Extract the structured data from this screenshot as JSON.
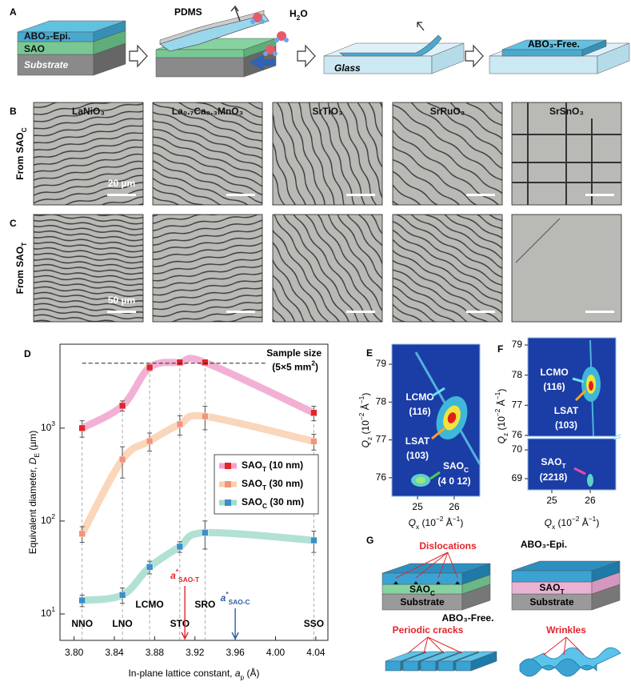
{
  "panel_letters": [
    "A",
    "B",
    "C",
    "D",
    "E",
    "F",
    "G"
  ],
  "panel_a": {
    "epi": "ABO₃-Epi.",
    "sao": "SAO",
    "substrate": "Substrate",
    "pdms": "PDMS",
    "water": [
      "H",
      {
        "sub": "2"
      },
      "O"
    ],
    "glass": "Glass",
    "free": "ABO₃-Free."
  },
  "panel_bc": {
    "materials": [
      "LaNiO₃",
      "La₀.₇Ca₀.₃MnO₃",
      "SrTiO₃",
      "SrRuO₃",
      "SrSnO₃"
    ],
    "rows": [
      [
        "From SAO",
        {
          "sub": "C"
        }
      ],
      [
        "From SAO",
        {
          "sub": "T"
        }
      ]
    ],
    "scale_bars": [
      "20 µm",
      "50 µm"
    ]
  },
  "chart_data": [
    {
      "type": "line",
      "x_label": [
        "In-plane lattice constant, ",
        {
          "i": "a"
        },
        {
          "sub": "p"
        },
        " (Å)"
      ],
      "y_label": [
        "Equivalent diameter, ",
        {
          "i": "D"
        },
        {
          "sub": "E"
        },
        " (µm)"
      ],
      "x": [
        3.808,
        3.848,
        3.875,
        3.905,
        3.93,
        4.038
      ],
      "materials": [
        "NNO",
        "LNO",
        "LCMO",
        "STO",
        "SRO",
        "SSO"
      ],
      "series": [
        {
          "name": [
            "SAO",
            {
              "sub": "T"
            },
            " (10 nm)"
          ],
          "color": "#e3242b",
          "curve_color": "#f0a3cc",
          "values": [
            1000,
            1740,
            4500,
            5100,
            5100,
            1460
          ],
          "errors": [
            200,
            220,
            350,
            300,
            300,
            260
          ]
        },
        {
          "name": [
            "SAO",
            {
              "sub": "T"
            },
            " (30 nm)"
          ],
          "color": "#f4937a",
          "curve_color": "#f9cfae",
          "values": [
            73,
            460,
            725,
            1100,
            1340,
            720
          ],
          "errors": [
            14,
            170,
            160,
            260,
            380,
            140
          ]
        },
        {
          "name": [
            "SAO",
            {
              "sub": "C"
            },
            " (30 nm)"
          ],
          "color": "#3b8fc9",
          "curve_color": "#a3dccd",
          "values": [
            14,
            16,
            32,
            53,
            75,
            62
          ],
          "errors": [
            2,
            3,
            5,
            7,
            25,
            16
          ]
        }
      ],
      "xlim": [
        3.786,
        4.052
      ],
      "xticks": [
        {
          "value": 3.8,
          "label": "3.80"
        },
        {
          "value": 3.84,
          "label": "3.84"
        },
        {
          "value": 3.88,
          "label": "3.88"
        },
        {
          "value": 3.92,
          "label": "3.92"
        },
        {
          "value": 3.96,
          "label": "3.96"
        },
        {
          "value": 4.0,
          "label": "4.00"
        },
        {
          "value": 4.04,
          "label": "4.04"
        }
      ],
      "ylim": [
        5.2,
        8000
      ],
      "yticks": [
        {
          "value": 10,
          "label": [
            "10",
            {
              "sup": "1"
            }
          ]
        },
        {
          "value": 100,
          "label": [
            "10",
            {
              "sup": "2"
            }
          ]
        },
        {
          "value": 1000,
          "label": [
            "10",
            {
              "sup": "3"
            }
          ]
        }
      ],
      "log_y": true,
      "legend": "right",
      "sample_size": {
        "value": 5000,
        "label": "Sample size",
        "detail": [
          "(5×5 mm",
          {
            "sup": "2"
          },
          ")"
        ]
      },
      "lattice_marks": [
        {
          "value": 3.91,
          "label": [
            {
              "i": "a"
            },
            {
              "sup": "*"
            },
            {
              "sub": "SAO-T"
            }
          ],
          "color": "#e3242b"
        },
        {
          "value": 3.96,
          "label": [
            {
              "i": "a"
            },
            {
              "sup": "*"
            },
            {
              "sub": "SAO-C"
            }
          ],
          "color": "#2e5ca8"
        }
      ]
    },
    {
      "type": "heatmap",
      "x_label": [
        {
          "i": "Q"
        },
        {
          "sub": "x"
        },
        " (10",
        {
          "sup": "−2"
        },
        " Å",
        {
          "sup": "−1"
        },
        ")"
      ],
      "y_label": [
        {
          "i": "Q"
        },
        {
          "sub": "z"
        },
        " (10",
        {
          "sup": "−2"
        },
        " Å",
        {
          "sup": "−1"
        },
        ")"
      ],
      "xlim": [
        24.3,
        26.7
      ],
      "xticks": [
        25,
        26
      ],
      "ylim": [
        75.51,
        79.53
      ],
      "yticks": [
        76,
        77,
        78,
        79
      ],
      "annotations": [
        "LCMO",
        "(116)",
        "LSAT",
        "(103)",
        [
          "SAO",
          {
            "sub": "C"
          }
        ],
        "(4 0 12)"
      ]
    },
    {
      "type": "heatmap",
      "x_label": [
        {
          "i": "Q"
        },
        {
          "sub": "x"
        },
        " (10",
        {
          "sup": "−2"
        },
        " Å",
        {
          "sup": "−1"
        },
        ")"
      ],
      "y_label": [
        {
          "i": "Q"
        },
        {
          "sub": "z"
        },
        " (10",
        {
          "sup": "−2"
        },
        " Å",
        {
          "sup": "−1"
        },
        ")"
      ],
      "xlim": [
        24.375,
        26.667
      ],
      "xticks": [
        25,
        26
      ],
      "ylim": [
        75.97,
        79.24
      ],
      "yticks": [
        76,
        77,
        78,
        79
      ],
      "y_lower_lim": [
        68.61,
        70.39
      ],
      "y_lower_ticks": [
        69,
        70
      ],
      "annotations": [
        "LCMO",
        "(116)",
        "LSAT",
        "(103)",
        [
          "SAO",
          {
            "sub": "T"
          }
        ],
        "(2218)"
      ]
    }
  ],
  "panel_g": {
    "epi": "ABO₃-Epi.",
    "free": "ABO₃-Free.",
    "dislocations": "Dislocations",
    "sao_c": [
      "SAO",
      {
        "sub": "C"
      }
    ],
    "sao_t": [
      "SAO",
      {
        "sub": "T"
      }
    ],
    "substrate": "Substrate",
    "cracks": "Periodic cracks",
    "wrinkles": "Wrinkles"
  }
}
